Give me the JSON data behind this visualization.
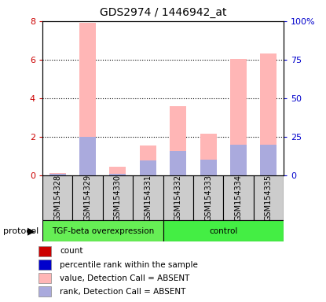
{
  "title": "GDS2974 / 1446942_at",
  "samples": [
    "GSM154328",
    "GSM154329",
    "GSM154330",
    "GSM154331",
    "GSM154332",
    "GSM154333",
    "GSM154334",
    "GSM154335"
  ],
  "ylim_left": [
    0,
    8
  ],
  "ylim_right": [
    0,
    100
  ],
  "yticks_left": [
    0,
    2,
    4,
    6,
    8
  ],
  "yticks_right": [
    0,
    25,
    50,
    75,
    100
  ],
  "ytick_labels_left": [
    "0",
    "2",
    "4",
    "6",
    "8"
  ],
  "ytick_labels_right": [
    "0",
    "25",
    "50",
    "75",
    "100%"
  ],
  "pink_bars": [
    0.12,
    7.9,
    0.42,
    1.55,
    3.6,
    2.15,
    6.05,
    6.3
  ],
  "blue_bars": [
    0.08,
    2.0,
    0.05,
    0.75,
    1.25,
    0.82,
    1.6,
    1.58
  ],
  "bar_width": 0.55,
  "bg_color": "#ffffff",
  "left_tick_color": "#cc0000",
  "right_tick_color": "#0000cc",
  "grid_dotted_vals": [
    2,
    4,
    6
  ],
  "tgf_group_color": "#66ee55",
  "ctrl_group_color": "#44ee44",
  "legend_labels": [
    "count",
    "percentile rank within the sample",
    "value, Detection Call = ABSENT",
    "rank, Detection Call = ABSENT"
  ],
  "legend_colors": [
    "#cc0000",
    "#0000cc",
    "#ffb6b6",
    "#aaaadd"
  ],
  "sample_bg": "#cccccc",
  "protocol_label": "protocol"
}
